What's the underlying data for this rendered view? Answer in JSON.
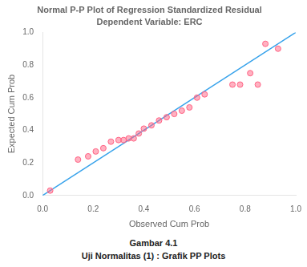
{
  "chart_data": {
    "type": "scatter",
    "title": "Normal P-P Plot of Regression Standardized Residual",
    "subtitle": "Dependent Variable: ERC",
    "xlabel": "Observed Cum Prob",
    "ylabel": "Expected Cum Prob",
    "annotations": [
      "Gambar 4.1",
      "Uji Normalitas (1) : Grafik PP Plots"
    ],
    "xlim": [
      0.0,
      1.0
    ],
    "ylim": [
      0.0,
      1.0
    ],
    "xticks": [
      {
        "value": 0,
        "label": "0.0"
      },
      0.2,
      0.4,
      0.6,
      0.8,
      {
        "value": 1,
        "label": "1.0"
      }
    ],
    "yticks": [
      {
        "value": 0,
        "label": "0.0"
      },
      0.2,
      0.4,
      0.6,
      0.8,
      {
        "value": 1,
        "label": "1.0"
      }
    ],
    "grid": false,
    "series": [
      {
        "type": "line",
        "x": [
          0.0,
          1.0
        ],
        "values": [
          0.0,
          1.0
        ]
      },
      {
        "type": "scatter",
        "x": [
          0.03,
          0.14,
          0.18,
          0.21,
          0.24,
          0.27,
          0.3,
          0.32,
          0.34,
          0.36,
          0.38,
          0.4,
          0.43,
          0.46,
          0.49,
          0.52,
          0.55,
          0.58,
          0.61,
          0.64,
          0.75,
          0.78,
          0.82,
          0.85,
          0.88,
          0.93
        ],
        "values": [
          0.03,
          0.22,
          0.24,
          0.27,
          0.29,
          0.33,
          0.34,
          0.34,
          0.35,
          0.35,
          0.38,
          0.41,
          0.43,
          0.46,
          0.48,
          0.5,
          0.52,
          0.54,
          0.6,
          0.62,
          0.68,
          0.68,
          0.75,
          0.68,
          0.93,
          0.9
        ]
      }
    ]
  }
}
